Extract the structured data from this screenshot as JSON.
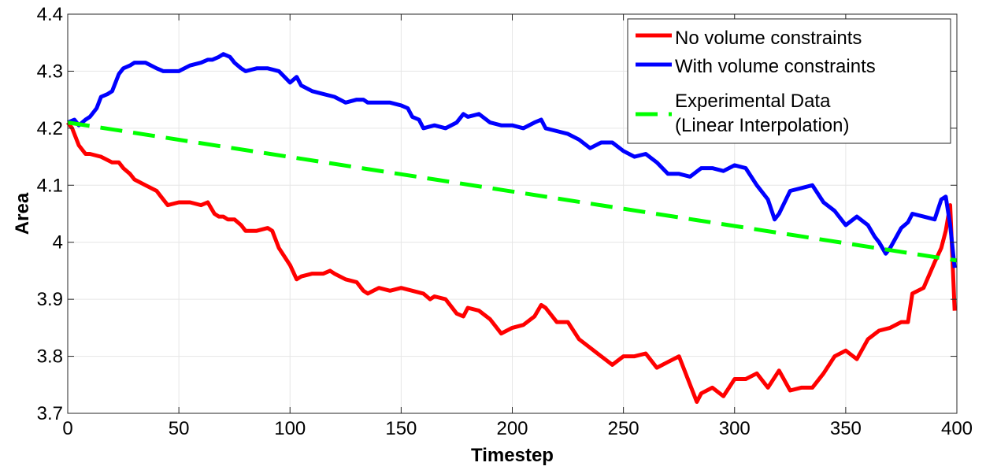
{
  "chart_data": {
    "type": "line",
    "xlabel": "Timestep",
    "ylabel": "Area",
    "xlim": [
      0,
      400
    ],
    "ylim": [
      3.7,
      4.4
    ],
    "xticks": [
      0,
      50,
      100,
      150,
      200,
      250,
      300,
      350,
      400
    ],
    "xtick_labels": [
      "0",
      "50",
      "100",
      "150",
      "200",
      "250",
      "300",
      "350",
      "400"
    ],
    "yticks": [
      3.7,
      3.8,
      3.9,
      4.0,
      4.1,
      4.2,
      4.3,
      4.4
    ],
    "ytick_labels": [
      "3.7",
      "3.8",
      "3.9",
      "4",
      "4.1",
      "4.2",
      "4.3",
      "4.4"
    ],
    "grid": true,
    "legend_position": "top-right",
    "series": [
      {
        "name": "No volume constraints",
        "color": "#ff0000",
        "style": "solid",
        "x": [
          0,
          2,
          5,
          8,
          10,
          15,
          20,
          23,
          25,
          28,
          30,
          35,
          40,
          42,
          45,
          50,
          55,
          60,
          63,
          66,
          68,
          70,
          72,
          75,
          78,
          80,
          85,
          90,
          92,
          95,
          100,
          103,
          105,
          110,
          115,
          118,
          120,
          125,
          130,
          133,
          135,
          140,
          145,
          150,
          155,
          160,
          163,
          165,
          170,
          175,
          178,
          180,
          185,
          190,
          195,
          200,
          205,
          210,
          213,
          215,
          220,
          225,
          230,
          235,
          240,
          245,
          250,
          255,
          260,
          265,
          270,
          275,
          280,
          283,
          285,
          290,
          295,
          300,
          305,
          310,
          315,
          320,
          325,
          330,
          335,
          340,
          345,
          350,
          355,
          360,
          365,
          370,
          375,
          378,
          380,
          385,
          390,
          393,
          395,
          397,
          399
        ],
        "y": [
          4.21,
          4.2,
          4.17,
          4.155,
          4.155,
          4.15,
          4.14,
          4.14,
          4.13,
          4.12,
          4.11,
          4.1,
          4.09,
          4.08,
          4.065,
          4.07,
          4.07,
          4.065,
          4.07,
          4.05,
          4.045,
          4.045,
          4.04,
          4.04,
          4.03,
          4.02,
          4.02,
          4.025,
          4.02,
          3.99,
          3.96,
          3.935,
          3.94,
          3.945,
          3.945,
          3.95,
          3.945,
          3.935,
          3.93,
          3.915,
          3.91,
          3.92,
          3.915,
          3.92,
          3.915,
          3.91,
          3.9,
          3.905,
          3.9,
          3.875,
          3.87,
          3.885,
          3.88,
          3.865,
          3.84,
          3.85,
          3.855,
          3.87,
          3.89,
          3.885,
          3.86,
          3.86,
          3.83,
          3.815,
          3.8,
          3.785,
          3.8,
          3.8,
          3.805,
          3.78,
          3.79,
          3.8,
          3.75,
          3.72,
          3.735,
          3.745,
          3.73,
          3.76,
          3.76,
          3.77,
          3.745,
          3.775,
          3.74,
          3.745,
          3.745,
          3.77,
          3.8,
          3.81,
          3.795,
          3.83,
          3.845,
          3.85,
          3.86,
          3.86,
          3.91,
          3.92,
          3.965,
          3.99,
          4.02,
          4.065,
          3.88
        ]
      },
      {
        "name": "With volume constraints",
        "color": "#0000ff",
        "style": "solid",
        "x": [
          0,
          3,
          5,
          8,
          10,
          13,
          15,
          18,
          20,
          23,
          25,
          28,
          30,
          35,
          40,
          43,
          45,
          48,
          50,
          55,
          60,
          63,
          65,
          68,
          70,
          73,
          75,
          78,
          80,
          85,
          90,
          95,
          100,
          103,
          105,
          110,
          115,
          120,
          125,
          130,
          133,
          135,
          140,
          145,
          150,
          153,
          155,
          158,
          160,
          165,
          170,
          175,
          178,
          180,
          185,
          190,
          195,
          200,
          205,
          210,
          213,
          215,
          220,
          225,
          230,
          235,
          240,
          245,
          250,
          255,
          260,
          265,
          270,
          275,
          280,
          285,
          290,
          295,
          300,
          305,
          310,
          315,
          318,
          320,
          325,
          330,
          335,
          340,
          345,
          350,
          355,
          360,
          363,
          365,
          368,
          370,
          375,
          378,
          380,
          385,
          390,
          393,
          395,
          397,
          399
        ],
        "y": [
          4.21,
          4.215,
          4.205,
          4.215,
          4.22,
          4.235,
          4.255,
          4.26,
          4.265,
          4.295,
          4.305,
          4.31,
          4.315,
          4.315,
          4.305,
          4.3,
          4.3,
          4.3,
          4.3,
          4.31,
          4.315,
          4.32,
          4.32,
          4.325,
          4.33,
          4.325,
          4.315,
          4.305,
          4.3,
          4.305,
          4.305,
          4.3,
          4.28,
          4.29,
          4.275,
          4.265,
          4.26,
          4.255,
          4.245,
          4.25,
          4.25,
          4.245,
          4.245,
          4.245,
          4.24,
          4.235,
          4.22,
          4.215,
          4.2,
          4.205,
          4.2,
          4.21,
          4.225,
          4.22,
          4.225,
          4.21,
          4.205,
          4.205,
          4.2,
          4.21,
          4.215,
          4.2,
          4.195,
          4.19,
          4.18,
          4.165,
          4.175,
          4.175,
          4.16,
          4.15,
          4.155,
          4.14,
          4.12,
          4.12,
          4.115,
          4.13,
          4.13,
          4.125,
          4.135,
          4.13,
          4.1,
          4.075,
          4.04,
          4.05,
          4.09,
          4.095,
          4.1,
          4.07,
          4.055,
          4.03,
          4.045,
          4.03,
          4.01,
          4.0,
          3.98,
          3.99,
          4.025,
          4.035,
          4.05,
          4.045,
          4.04,
          4.075,
          4.08,
          4.03,
          3.955
        ]
      },
      {
        "name": "Experimental Data\n(Linear Interpolation)",
        "color": "#00ff00",
        "style": "dashed",
        "x": [
          0,
          400
        ],
        "y": [
          4.21,
          3.968
        ]
      }
    ]
  }
}
